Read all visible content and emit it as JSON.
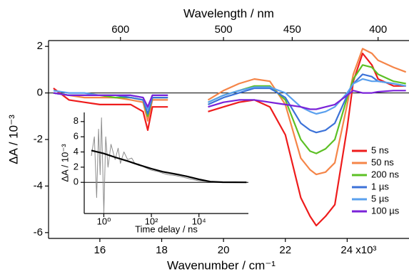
{
  "chart_data": [
    {
      "type": "line",
      "xlabel": "Wavenumber / cm⁻¹",
      "ylabel": "ΔA / 10⁻³",
      "top_xlabel": "Wavelength / nm",
      "top_xticks": [
        600,
        500,
        450,
        400
      ],
      "xlim": [
        14.34,
        26.0
      ],
      "ylim": [
        -6.25,
        2.25
      ],
      "xticks": [
        16,
        18,
        20,
        22,
        {
          "value": 24,
          "label": "24 x10³"
        }
      ],
      "yticks": [
        2,
        0,
        -2,
        -4,
        -6
      ],
      "zero_line": true,
      "legend": "lower right",
      "x": [
        14.5,
        15,
        15.5,
        16,
        16.5,
        17,
        17.4,
        17.55,
        17.7,
        18.2,
        19.0,
        19.5,
        20,
        20.5,
        21,
        21.5,
        22,
        22.5,
        22.8,
        23,
        23.3,
        23.6,
        24,
        24.2,
        24.5,
        24.8,
        25,
        25.5,
        25.9
      ],
      "series": [
        {
          "name": "5 ns",
          "color": "#ee1c1c",
          "values": [
            0.2,
            -0.3,
            -0.4,
            -0.5,
            -0.5,
            -0.5,
            -0.8,
            -1.6,
            -0.6,
            -0.6,
            null,
            -0.8,
            -0.6,
            -0.4,
            -0.3,
            -0.6,
            -1.8,
            -4.5,
            -5.3,
            -5.7,
            -5.3,
            -4.8,
            -1.5,
            0.5,
            1.7,
            1.2,
            0.6,
            0.3,
            0.3
          ]
        },
        {
          "name": "50 ns",
          "color": "#f58548",
          "values": [
            0,
            -0.1,
            -0.2,
            -0.2,
            -0.2,
            -0.3,
            -0.4,
            -1.2,
            -0.3,
            -0.3,
            null,
            -0.3,
            0.1,
            0.4,
            0.6,
            0.5,
            -0.5,
            -2.8,
            -3.3,
            -3.5,
            -3.4,
            -3.0,
            -0.5,
            0.8,
            1.9,
            1.7,
            1.4,
            1.1,
            0.9
          ]
        },
        {
          "name": "200 ns",
          "color": "#5cc024",
          "values": [
            0,
            -0.1,
            -0.1,
            -0.1,
            -0.2,
            -0.2,
            -0.3,
            -1.0,
            -0.2,
            -0.2,
            null,
            -0.4,
            -0.1,
            0.1,
            0.3,
            0.3,
            -0.3,
            -2.0,
            -2.5,
            -2.6,
            -2.4,
            -2.0,
            -0.2,
            0.6,
            1.2,
            1.1,
            0.8,
            0.5,
            0.4
          ]
        },
        {
          "name": "1 µs",
          "color": "#3c72d8",
          "values": [
            0,
            -0.1,
            -0.1,
            -0.1,
            -0.1,
            -0.2,
            -0.3,
            -0.9,
            -0.2,
            -0.2,
            null,
            -0.5,
            -0.2,
            0,
            0.2,
            0.2,
            -0.2,
            -1.3,
            -1.6,
            -1.7,
            -1.6,
            -1.3,
            -0.1,
            0.4,
            0.8,
            0.7,
            0.5,
            0.4,
            0.3
          ]
        },
        {
          "name": "5 µs",
          "color": "#5aa0ee",
          "values": [
            0.1,
            0,
            0,
            -0.1,
            -0.1,
            -0.1,
            -0.2,
            -0.7,
            -0.1,
            -0.1,
            null,
            -0.4,
            -0.1,
            0.1,
            0.25,
            0.25,
            0,
            -0.6,
            -0.8,
            -0.9,
            -0.8,
            -0.6,
            0,
            0.4,
            0.6,
            0.5,
            0.5,
            0.4,
            0.3
          ]
        },
        {
          "name": "100 µs",
          "color": "#7a22d8",
          "values": [
            0,
            -0.1,
            -0.1,
            -0.1,
            -0.1,
            -0.1,
            -0.2,
            -0.6,
            -0.1,
            -0.1,
            null,
            -0.6,
            -0.4,
            -0.3,
            -0.3,
            -0.4,
            -0.5,
            -0.6,
            -0.7,
            -0.7,
            -0.6,
            -0.5,
            -0.1,
            0.1,
            0.0,
            0,
            0.05,
            0.1,
            0.1
          ]
        }
      ]
    },
    {
      "type": "line",
      "xlabel": "Time delay / ns",
      "ylabel": "ΔA / 10⁻³",
      "xlog": true,
      "xlim": [
        0.15,
        1200000
      ],
      "ylim": [
        -4.1,
        9.2
      ],
      "xticks": [
        {
          "value": 1,
          "label": "10⁰"
        },
        {
          "value": 100,
          "label": "10²"
        },
        {
          "value": 10000,
          "label": "10⁴"
        }
      ],
      "yticks": [
        0,
        2,
        4,
        6,
        8
      ],
      "zero_line": true,
      "series": [
        {
          "color": "#8c8c8c",
          "x": [
            0.3,
            0.4,
            0.5,
            0.6,
            0.7,
            0.8,
            1,
            1.2,
            1.5,
            2,
            3,
            4,
            5,
            7,
            10,
            15,
            20,
            30,
            50,
            70,
            100,
            200,
            300,
            500,
            1000,
            2000,
            5000,
            10000,
            30000,
            100000,
            300000,
            1000000
          ],
          "values": [
            3.5,
            6,
            -2,
            7,
            1,
            8.5,
            -4,
            6,
            2,
            5,
            3,
            4.5,
            2.5,
            4,
            3,
            3.2,
            2.5,
            2.4,
            2,
            1.8,
            1.6,
            1.4,
            1.2,
            1.0,
            0.9,
            0.7,
            0.4,
            0.2,
            0.1,
            0.05,
            0.0,
            0.0
          ]
        },
        {
          "color": "#000000",
          "x": [
            0.3,
            1,
            3,
            10,
            30,
            100,
            300,
            1000,
            3000,
            10000,
            30000,
            100000,
            1000000
          ],
          "values": [
            4.2,
            3.8,
            3.3,
            2.8,
            2.3,
            1.8,
            1.4,
            1.1,
            0.8,
            0.4,
            0.1,
            0.02,
            0
          ]
        }
      ]
    }
  ]
}
